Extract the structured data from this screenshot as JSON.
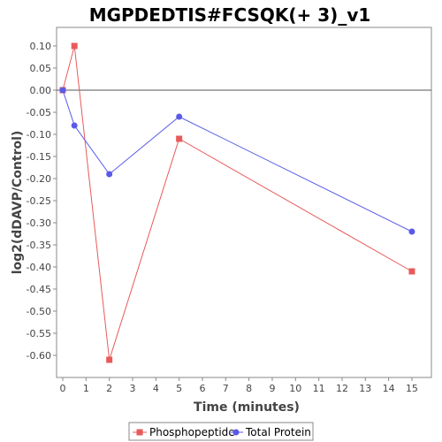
{
  "chart_data": {
    "type": "line",
    "title": "MGPDEDTIS#FCSQK(+ 3)_v1",
    "xlabel": "Time (minutes)",
    "ylabel": "log2(dDAVP/Control)",
    "xlim": [
      0,
      16
    ],
    "ylim": [
      -0.65,
      0.12
    ],
    "xticks": [
      0,
      1,
      2,
      3,
      4,
      5,
      6,
      7,
      8,
      9,
      10,
      11,
      12,
      13,
      14,
      15
    ],
    "yticks": [
      0.1,
      0.05,
      0.0,
      -0.05,
      -0.1,
      -0.15,
      -0.2,
      -0.25,
      -0.3,
      -0.35,
      -0.4,
      -0.45,
      -0.5,
      -0.55,
      -0.6
    ],
    "ytick_labels": [
      "0.10",
      "0.05",
      "0.00",
      "-0.05",
      "-0.10",
      "-0.15",
      "-0.20",
      "-0.25",
      "-0.30",
      "-0.35",
      "-0.40",
      "-0.45",
      "-0.50",
      "-0.55",
      "-0.60"
    ],
    "zero_line": true,
    "grid": false,
    "legend_position": "bottom",
    "series": [
      {
        "name": "Phosphopeptide",
        "color": "#e85a5a",
        "marker": "square",
        "x": [
          0,
          0.5,
          2,
          5,
          15
        ],
        "y": [
          0.0,
          0.1,
          -0.61,
          -0.11,
          -0.41
        ]
      },
      {
        "name": "Total Protein",
        "color": "#5a5ae8",
        "marker": "circle",
        "x": [
          0,
          0.5,
          2,
          5,
          15
        ],
        "y": [
          0.0,
          -0.08,
          -0.19,
          -0.06,
          -0.32
        ]
      }
    ]
  }
}
